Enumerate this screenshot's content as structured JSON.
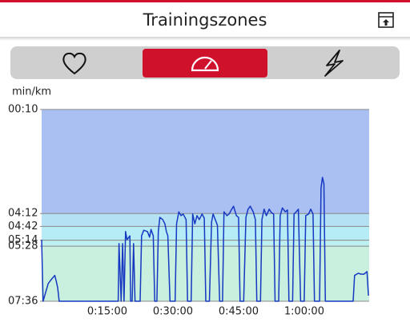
{
  "header": {
    "title": "Trainingszones"
  },
  "chart_data": {
    "type": "line",
    "ylabel": "min/km",
    "ylim": [
      456,
      10
    ],
    "yticks": [
      {
        "value": 10,
        "label": "00:10"
      },
      {
        "value": 252,
        "label": "04:12"
      },
      {
        "value": 282,
        "label": "04:42"
      },
      {
        "value": 314,
        "label": "05:14"
      },
      {
        "value": 328,
        "label": "05:28"
      },
      {
        "value": 456,
        "label": "07:36"
      }
    ],
    "xlim": [
      0,
      4490
    ],
    "xticks": [
      {
        "value": 900,
        "label": "0:15:00"
      },
      {
        "value": 1800,
        "label": "0:30:00"
      },
      {
        "value": 2700,
        "label": "0:45:00"
      },
      {
        "value": 3600,
        "label": "1:00:00"
      }
    ],
    "zone_colors": [
      "#aabff2",
      "#b4e2f4",
      "#b6ecf6",
      "#bdeef0",
      "#c9efde"
    ],
    "color": "#1638c2",
    "x": [
      0,
      20,
      90,
      130,
      180,
      200,
      220,
      240,
      1050,
      1060,
      1090,
      1110,
      1130,
      1150,
      1170,
      1210,
      1220,
      1240,
      1260,
      1280,
      1350,
      1370,
      1400,
      1450,
      1480,
      1500,
      1530,
      1550,
      1580,
      1600,
      1620,
      1660,
      1690,
      1710,
      1730,
      1760,
      1830,
      1850,
      1880,
      1910,
      1940,
      1980,
      2000,
      2050,
      2070,
      2100,
      2130,
      2160,
      2200,
      2230,
      2250,
      2300,
      2330,
      2350,
      2380,
      2410,
      2440,
      2480,
      2500,
      2540,
      2570,
      2600,
      2630,
      2670,
      2700,
      2720,
      2770,
      2800,
      2830,
      2860,
      2900,
      2930,
      2950,
      3000,
      3020,
      3050,
      3080,
      3120,
      3150,
      3180,
      3200,
      3250,
      3270,
      3300,
      3340,
      3370,
      3390,
      3440,
      3460,
      3490,
      3520,
      3550,
      3600,
      3620,
      3660,
      3690,
      3720,
      3740,
      3810,
      3830,
      3850,
      3870,
      3890,
      4270,
      4290,
      4340,
      4380,
      4420,
      4460,
      4480
    ],
    "values": [
      313,
      456,
      415,
      406,
      396,
      409,
      424,
      456,
      456,
      322,
      456,
      322,
      456,
      294,
      313,
      304,
      456,
      456,
      322,
      456,
      456,
      304,
      291,
      294,
      307,
      289,
      304,
      456,
      456,
      294,
      261,
      266,
      276,
      294,
      304,
      456,
      456,
      276,
      248,
      257,
      253,
      266,
      456,
      456,
      253,
      276,
      257,
      266,
      253,
      263,
      456,
      456,
      272,
      253,
      266,
      279,
      456,
      456,
      248,
      257,
      253,
      244,
      235,
      257,
      261,
      456,
      456,
      261,
      242,
      235,
      248,
      266,
      456,
      456,
      266,
      242,
      257,
      242,
      250,
      253,
      456,
      456,
      257,
      239,
      248,
      244,
      456,
      456,
      253,
      248,
      242,
      456,
      456,
      257,
      253,
      242,
      253,
      456,
      456,
      192,
      168,
      183,
      456,
      456,
      396,
      391,
      393,
      393,
      387,
      443
    ]
  }
}
